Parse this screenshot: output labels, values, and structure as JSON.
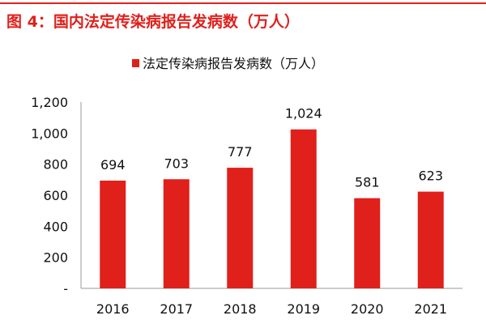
{
  "header": {
    "title": "图 4：国内法定传染病报告发病数（万人）"
  },
  "chart_data": {
    "type": "bar",
    "categories": [
      "2016",
      "2017",
      "2018",
      "2019",
      "2020",
      "2021"
    ],
    "series": [
      {
        "name": "法定传染病报告发病数（万人）",
        "values": [
          694,
          703,
          777,
          1024,
          581,
          623
        ]
      }
    ],
    "data_labels": [
      "694",
      "703",
      "777",
      "1,024",
      "581",
      "623"
    ],
    "ylim": [
      0,
      1200
    ],
    "yticks": [
      0,
      200,
      400,
      600,
      800,
      1000,
      1200
    ],
    "ytick_labels": [
      "-",
      "200",
      "400",
      "600",
      "800",
      "1,000",
      "1,200"
    ],
    "legend": "top",
    "grid": false,
    "bar_color": "#e0201b"
  }
}
